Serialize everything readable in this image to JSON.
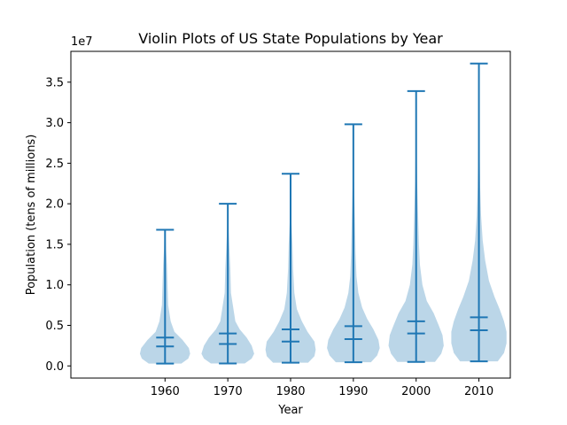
{
  "chart_data": {
    "type": "violin",
    "title": "Violin Plots of US State Populations by Year",
    "xlabel": "Year",
    "ylabel": "Population (tens of millions)",
    "y_multiplier_label": "1e7",
    "categories": [
      "1960",
      "1970",
      "1980",
      "1990",
      "2000",
      "2010"
    ],
    "ylim": [
      -1500000,
      38800000
    ],
    "xlim": [
      1945,
      2015
    ],
    "y_ticks": [
      0,
      5000000,
      10000000,
      15000000,
      20000000,
      25000000,
      30000000,
      35000000
    ],
    "y_tick_labels": [
      "0.0",
      "0.5",
      "1.0",
      "1.5",
      "2.0",
      "2.5",
      "3.0",
      "3.5"
    ],
    "grid": false,
    "colors": {
      "violin_fill": "#1f77b4",
      "violin_alpha": 0.3,
      "lines": "#1f77b4"
    },
    "series": [
      {
        "year": 1960,
        "min": 290000,
        "max": 16800000,
        "mean": 3500000,
        "median": 2400000
      },
      {
        "year": 1970,
        "min": 300000,
        "max": 20000000,
        "mean": 4000000,
        "median": 2700000
      },
      {
        "year": 1980,
        "min": 400000,
        "max": 23700000,
        "mean": 4500000,
        "median": 3000000
      },
      {
        "year": 1990,
        "min": 450000,
        "max": 29800000,
        "mean": 4900000,
        "median": 3300000
      },
      {
        "year": 2000,
        "min": 490000,
        "max": 33900000,
        "mean": 5500000,
        "median": 4000000
      },
      {
        "year": 2010,
        "min": 560000,
        "max": 37300000,
        "mean": 6000000,
        "median": 4400000
      }
    ],
    "violin_shapes": [
      [
        [
          290000,
          0.26
        ],
        [
          900000,
          0.37
        ],
        [
          1500000,
          0.4
        ],
        [
          2200000,
          0.38
        ],
        [
          3200000,
          0.28
        ],
        [
          4200000,
          0.15
        ],
        [
          5500000,
          0.09
        ],
        [
          7500000,
          0.05
        ],
        [
          10000000,
          0.04
        ],
        [
          12500000,
          0.03
        ],
        [
          14500000,
          0.015
        ],
        [
          16800000,
          0.005
        ]
      ],
      [
        [
          300000,
          0.27
        ],
        [
          900000,
          0.38
        ],
        [
          1500000,
          0.42
        ],
        [
          2500000,
          0.38
        ],
        [
          3500000,
          0.3
        ],
        [
          4500000,
          0.19
        ],
        [
          5500000,
          0.12
        ],
        [
          7000000,
          0.09
        ],
        [
          9000000,
          0.05
        ],
        [
          12000000,
          0.04
        ],
        [
          14500000,
          0.025
        ],
        [
          17000000,
          0.01
        ],
        [
          20000000,
          0.003
        ]
      ],
      [
        [
          400000,
          0.28
        ],
        [
          1200000,
          0.38
        ],
        [
          2000000,
          0.4
        ],
        [
          3000000,
          0.38
        ],
        [
          4200000,
          0.27
        ],
        [
          5500000,
          0.18
        ],
        [
          7000000,
          0.1
        ],
        [
          9000000,
          0.06
        ],
        [
          12000000,
          0.04
        ],
        [
          15000000,
          0.03
        ],
        [
          18000000,
          0.012
        ],
        [
          21000000,
          0.004
        ],
        [
          23700000,
          0.002
        ]
      ],
      [
        [
          450000,
          0.28
        ],
        [
          1300000,
          0.38
        ],
        [
          2200000,
          0.42
        ],
        [
          3200000,
          0.4
        ],
        [
          4500000,
          0.32
        ],
        [
          5800000,
          0.22
        ],
        [
          7200000,
          0.14
        ],
        [
          9000000,
          0.08
        ],
        [
          11000000,
          0.05
        ],
        [
          14000000,
          0.035
        ],
        [
          18000000,
          0.025
        ],
        [
          22000000,
          0.012
        ],
        [
          26000000,
          0.004
        ],
        [
          29800000,
          0.002
        ]
      ],
      [
        [
          490000,
          0.3
        ],
        [
          1500000,
          0.4
        ],
        [
          2500000,
          0.44
        ],
        [
          3800000,
          0.42
        ],
        [
          5000000,
          0.36
        ],
        [
          6500000,
          0.28
        ],
        [
          8000000,
          0.17
        ],
        [
          10000000,
          0.1
        ],
        [
          12500000,
          0.06
        ],
        [
          15000000,
          0.045
        ],
        [
          19000000,
          0.03
        ],
        [
          23000000,
          0.015
        ],
        [
          28000000,
          0.005
        ],
        [
          33900000,
          0.002
        ]
      ],
      [
        [
          560000,
          0.3
        ],
        [
          1600000,
          0.4
        ],
        [
          2800000,
          0.44
        ],
        [
          4200000,
          0.44
        ],
        [
          5500000,
          0.4
        ],
        [
          7000000,
          0.33
        ],
        [
          8500000,
          0.25
        ],
        [
          10500000,
          0.16
        ],
        [
          13000000,
          0.1
        ],
        [
          15500000,
          0.06
        ],
        [
          18500000,
          0.035
        ],
        [
          22000000,
          0.02
        ],
        [
          27000000,
          0.01
        ],
        [
          32000000,
          0.004
        ],
        [
          37300000,
          0.002
        ]
      ]
    ]
  }
}
